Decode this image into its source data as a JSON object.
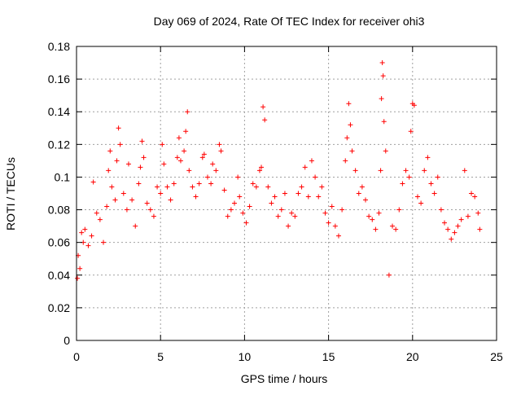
{
  "chart_data": {
    "type": "scatter",
    "title": "Day 069 of 2024, Rate Of TEC Index for receiver ohi3",
    "xlabel": "GPS time / hours",
    "ylabel": "ROTI / TECUs",
    "xlim": [
      0,
      25
    ],
    "ylim": [
      0,
      0.18
    ],
    "xticks": [
      0,
      5,
      10,
      15,
      20,
      25
    ],
    "xtick_labels": [
      "0",
      "5",
      "10",
      "15",
      "20",
      "25"
    ],
    "yticks": [
      0,
      0.02,
      0.04,
      0.06,
      0.08,
      0.1,
      0.12,
      0.14,
      0.16,
      0.18
    ],
    "ytick_labels": [
      "0",
      "0.02",
      "0.04",
      "0.06",
      "0.08",
      "0.1",
      "0.12",
      "0.14",
      "0.16",
      "0.18"
    ],
    "grid": true,
    "marker": "+",
    "color": "#ff0000",
    "series": [
      {
        "name": "ROTI",
        "points": [
          [
            0.05,
            0.038
          ],
          [
            0.1,
            0.052
          ],
          [
            0.2,
            0.044
          ],
          [
            0.3,
            0.066
          ],
          [
            0.4,
            0.06
          ],
          [
            0.5,
            0.068
          ],
          [
            0.7,
            0.058
          ],
          [
            0.9,
            0.064
          ],
          [
            1.0,
            0.097
          ],
          [
            1.2,
            0.078
          ],
          [
            1.4,
            0.074
          ],
          [
            1.6,
            0.06
          ],
          [
            1.8,
            0.082
          ],
          [
            1.9,
            0.104
          ],
          [
            2.0,
            0.116
          ],
          [
            2.1,
            0.094
          ],
          [
            2.3,
            0.086
          ],
          [
            2.4,
            0.11
          ],
          [
            2.5,
            0.13
          ],
          [
            2.6,
            0.12
          ],
          [
            2.8,
            0.09
          ],
          [
            3.0,
            0.08
          ],
          [
            3.1,
            0.108
          ],
          [
            3.3,
            0.086
          ],
          [
            3.5,
            0.07
          ],
          [
            3.7,
            0.096
          ],
          [
            3.8,
            0.106
          ],
          [
            3.9,
            0.122
          ],
          [
            4.0,
            0.112
          ],
          [
            4.2,
            0.084
          ],
          [
            4.4,
            0.08
          ],
          [
            4.6,
            0.076
          ],
          [
            4.8,
            0.094
          ],
          [
            5.0,
            0.09
          ],
          [
            5.1,
            0.12
          ],
          [
            5.2,
            0.108
          ],
          [
            5.4,
            0.094
          ],
          [
            5.6,
            0.086
          ],
          [
            5.8,
            0.096
          ],
          [
            6.0,
            0.112
          ],
          [
            6.1,
            0.124
          ],
          [
            6.2,
            0.11
          ],
          [
            6.4,
            0.116
          ],
          [
            6.5,
            0.128
          ],
          [
            6.6,
            0.14
          ],
          [
            6.7,
            0.104
          ],
          [
            6.9,
            0.094
          ],
          [
            7.1,
            0.088
          ],
          [
            7.3,
            0.096
          ],
          [
            7.5,
            0.112
          ],
          [
            7.6,
            0.114
          ],
          [
            7.8,
            0.1
          ],
          [
            8.0,
            0.096
          ],
          [
            8.1,
            0.108
          ],
          [
            8.3,
            0.104
          ],
          [
            8.5,
            0.12
          ],
          [
            8.6,
            0.116
          ],
          [
            8.8,
            0.092
          ],
          [
            9.0,
            0.076
          ],
          [
            9.2,
            0.08
          ],
          [
            9.4,
            0.084
          ],
          [
            9.6,
            0.1
          ],
          [
            9.7,
            0.088
          ],
          [
            9.9,
            0.078
          ],
          [
            10.1,
            0.072
          ],
          [
            10.3,
            0.082
          ],
          [
            10.5,
            0.096
          ],
          [
            10.7,
            0.094
          ],
          [
            10.9,
            0.104
          ],
          [
            11.0,
            0.106
          ],
          [
            11.1,
            0.143
          ],
          [
            11.2,
            0.135
          ],
          [
            11.4,
            0.094
          ],
          [
            11.6,
            0.084
          ],
          [
            11.8,
            0.088
          ],
          [
            12.0,
            0.076
          ],
          [
            12.2,
            0.08
          ],
          [
            12.4,
            0.09
          ],
          [
            12.6,
            0.07
          ],
          [
            12.8,
            0.078
          ],
          [
            13.0,
            0.076
          ],
          [
            13.2,
            0.09
          ],
          [
            13.4,
            0.094
          ],
          [
            13.6,
            0.106
          ],
          [
            13.8,
            0.088
          ],
          [
            14.0,
            0.11
          ],
          [
            14.2,
            0.1
          ],
          [
            14.4,
            0.088
          ],
          [
            14.6,
            0.094
          ],
          [
            14.8,
            0.078
          ],
          [
            15.0,
            0.072
          ],
          [
            15.2,
            0.082
          ],
          [
            15.4,
            0.07
          ],
          [
            15.6,
            0.064
          ],
          [
            15.8,
            0.08
          ],
          [
            16.0,
            0.11
          ],
          [
            16.1,
            0.124
          ],
          [
            16.2,
            0.145
          ],
          [
            16.3,
            0.132
          ],
          [
            16.4,
            0.116
          ],
          [
            16.6,
            0.104
          ],
          [
            16.8,
            0.09
          ],
          [
            17.0,
            0.094
          ],
          [
            17.2,
            0.086
          ],
          [
            17.4,
            0.076
          ],
          [
            17.6,
            0.074
          ],
          [
            17.8,
            0.068
          ],
          [
            18.0,
            0.078
          ],
          [
            18.1,
            0.104
          ],
          [
            18.15,
            0.148
          ],
          [
            18.2,
            0.17
          ],
          [
            18.25,
            0.162
          ],
          [
            18.3,
            0.134
          ],
          [
            18.4,
            0.116
          ],
          [
            18.6,
            0.04
          ],
          [
            18.8,
            0.07
          ],
          [
            19.0,
            0.068
          ],
          [
            19.2,
            0.08
          ],
          [
            19.4,
            0.096
          ],
          [
            19.6,
            0.104
          ],
          [
            19.8,
            0.1
          ],
          [
            19.9,
            0.128
          ],
          [
            20.0,
            0.145
          ],
          [
            20.1,
            0.144
          ],
          [
            20.3,
            0.088
          ],
          [
            20.5,
            0.084
          ],
          [
            20.7,
            0.104
          ],
          [
            20.9,
            0.112
          ],
          [
            21.1,
            0.096
          ],
          [
            21.3,
            0.09
          ],
          [
            21.5,
            0.1
          ],
          [
            21.7,
            0.08
          ],
          [
            21.9,
            0.072
          ],
          [
            22.1,
            0.068
          ],
          [
            22.3,
            0.062
          ],
          [
            22.5,
            0.066
          ],
          [
            22.7,
            0.07
          ],
          [
            22.9,
            0.074
          ],
          [
            23.1,
            0.104
          ],
          [
            23.3,
            0.076
          ],
          [
            23.5,
            0.09
          ],
          [
            23.7,
            0.088
          ],
          [
            23.9,
            0.078
          ],
          [
            24.0,
            0.068
          ]
        ]
      }
    ]
  }
}
